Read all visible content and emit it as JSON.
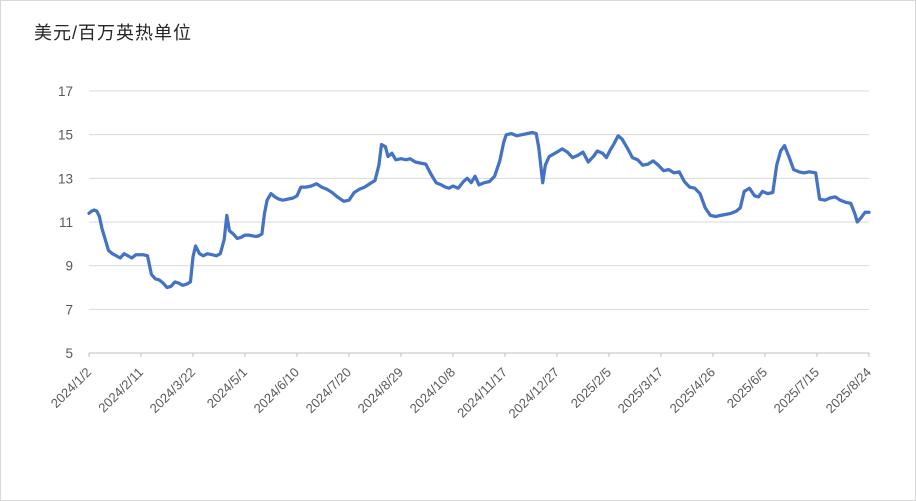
{
  "chart_data": {
    "type": "line",
    "title": "美元/百万英热单位",
    "ylabel": "",
    "xlabel": "",
    "ylim": [
      5,
      17
    ],
    "y_ticks": [
      5,
      7,
      9,
      11,
      13,
      15,
      17
    ],
    "x_tick_labels": [
      "2024/1/2",
      "2024/2/11",
      "2024/3/22",
      "2024/5/1",
      "2024/6/10",
      "2024/7/20",
      "2024/8/29",
      "2024/10/8",
      "2024/11/17",
      "2024/12/27",
      "2025/2/5",
      "2025/3/17",
      "2025/4/26",
      "2025/6/5",
      "2025/7/15",
      "2025/8/24"
    ],
    "x_tick_interval_days": 40,
    "grid": true,
    "legend": "none",
    "colors": {
      "line": "#4472C4",
      "gridline": "#D9D9D9",
      "axis": "#BFBFBF",
      "tick_label": "#595959",
      "title": "#262626",
      "background": "#FFFFFF",
      "border": "#D9D9D9"
    },
    "points": [
      [
        "2024/1/2",
        11.4
      ],
      [
        "2024/1/4",
        11.5
      ],
      [
        "2024/1/6",
        11.55
      ],
      [
        "2024/1/8",
        11.5
      ],
      [
        "2024/1/10",
        11.25
      ],
      [
        "2024/1/12",
        10.7
      ],
      [
        "2024/1/15",
        10.1
      ],
      [
        "2024/1/17",
        9.7
      ],
      [
        "2024/1/20",
        9.55
      ],
      [
        "2024/1/23",
        9.45
      ],
      [
        "2024/1/26",
        9.35
      ],
      [
        "2024/1/29",
        9.55
      ],
      [
        "2024/2/1",
        9.45
      ],
      [
        "2024/2/4",
        9.35
      ],
      [
        "2024/2/7",
        9.5
      ],
      [
        "2024/2/10",
        9.5
      ],
      [
        "2024/2/13",
        9.5
      ],
      [
        "2024/2/16",
        9.45
      ],
      [
        "2024/2/19",
        8.6
      ],
      [
        "2024/2/22",
        8.4
      ],
      [
        "2024/2/25",
        8.35
      ],
      [
        "2024/2/28",
        8.2
      ],
      [
        "2024/3/2",
        8.0
      ],
      [
        "2024/3/5",
        8.05
      ],
      [
        "2024/3/8",
        8.25
      ],
      [
        "2024/3/11",
        8.2
      ],
      [
        "2024/3/14",
        8.1
      ],
      [
        "2024/3/17",
        8.15
      ],
      [
        "2024/3/20",
        8.25
      ],
      [
        "2024/3/22",
        9.4
      ],
      [
        "2024/3/24",
        9.9
      ],
      [
        "2024/3/27",
        9.55
      ],
      [
        "2024/3/30",
        9.45
      ],
      [
        "2024/4/2",
        9.55
      ],
      [
        "2024/4/6",
        9.5
      ],
      [
        "2024/4/9",
        9.45
      ],
      [
        "2024/4/12",
        9.55
      ],
      [
        "2024/4/15",
        10.2
      ],
      [
        "2024/4/17",
        11.3
      ],
      [
        "2024/4/19",
        10.6
      ],
      [
        "2024/4/22",
        10.45
      ],
      [
        "2024/4/25",
        10.25
      ],
      [
        "2024/4/28",
        10.3
      ],
      [
        "2024/5/1",
        10.4
      ],
      [
        "2024/5/4",
        10.4
      ],
      [
        "2024/5/8",
        10.35
      ],
      [
        "2024/5/11",
        10.35
      ],
      [
        "2024/5/14",
        10.45
      ],
      [
        "2024/5/16",
        11.4
      ],
      [
        "2024/5/18",
        12.0
      ],
      [
        "2024/5/21",
        12.3
      ],
      [
        "2024/5/24",
        12.15
      ],
      [
        "2024/5/27",
        12.05
      ],
      [
        "2024/5/30",
        12.0
      ],
      [
        "2024/6/3",
        12.05
      ],
      [
        "2024/6/7",
        12.1
      ],
      [
        "2024/6/10",
        12.2
      ],
      [
        "2024/6/13",
        12.6
      ],
      [
        "2024/6/17",
        12.6
      ],
      [
        "2024/6/21",
        12.65
      ],
      [
        "2024/6/25",
        12.75
      ],
      [
        "2024/6/29",
        12.6
      ],
      [
        "2024/7/3",
        12.5
      ],
      [
        "2024/7/7",
        12.35
      ],
      [
        "2024/7/11",
        12.15
      ],
      [
        "2024/7/16",
        11.95
      ],
      [
        "2024/7/20",
        12.0
      ],
      [
        "2024/7/24",
        12.35
      ],
      [
        "2024/7/28",
        12.5
      ],
      [
        "2024/8/1",
        12.6
      ],
      [
        "2024/8/5",
        12.75
      ],
      [
        "2024/8/9",
        12.9
      ],
      [
        "2024/8/12",
        13.6
      ],
      [
        "2024/8/14",
        14.55
      ],
      [
        "2024/8/17",
        14.45
      ],
      [
        "2024/8/19",
        14.0
      ],
      [
        "2024/8/22",
        14.15
      ],
      [
        "2024/8/25",
        13.85
      ],
      [
        "2024/8/29",
        13.9
      ],
      [
        "2024/9/2",
        13.85
      ],
      [
        "2024/9/5",
        13.9
      ],
      [
        "2024/9/9",
        13.75
      ],
      [
        "2024/9/13",
        13.7
      ],
      [
        "2024/9/17",
        13.65
      ],
      [
        "2024/9/21",
        13.2
      ],
      [
        "2024/9/25",
        12.8
      ],
      [
        "2024/9/29",
        12.7
      ],
      [
        "2024/10/2",
        12.6
      ],
      [
        "2024/10/5",
        12.55
      ],
      [
        "2024/10/8",
        12.65
      ],
      [
        "2024/10/12",
        12.55
      ],
      [
        "2024/10/16",
        12.85
      ],
      [
        "2024/10/19",
        13.0
      ],
      [
        "2024/10/22",
        12.8
      ],
      [
        "2024/10/25",
        13.1
      ],
      [
        "2024/10/28",
        12.7
      ],
      [
        "2024/11/1",
        12.8
      ],
      [
        "2024/11/5",
        12.85
      ],
      [
        "2024/11/9",
        13.1
      ],
      [
        "2024/11/13",
        13.8
      ],
      [
        "2024/11/16",
        14.65
      ],
      [
        "2024/11/18",
        15.0
      ],
      [
        "2024/11/22",
        15.05
      ],
      [
        "2024/11/26",
        14.95
      ],
      [
        "2024/11/30",
        15.0
      ],
      [
        "2024/12/4",
        15.05
      ],
      [
        "2024/12/8",
        15.1
      ],
      [
        "2024/12/11",
        15.05
      ],
      [
        "2024/12/13",
        14.4
      ],
      [
        "2024/12/16",
        12.8
      ],
      [
        "2024/12/18",
        13.6
      ],
      [
        "2024/12/21",
        14.0
      ],
      [
        "2024/12/24",
        14.1
      ],
      [
        "2024/12/27",
        14.2
      ],
      [
        "2024/12/31",
        14.35
      ],
      [
        "2025/1/4",
        14.2
      ],
      [
        "2025/1/8",
        13.95
      ],
      [
        "2025/1/12",
        14.05
      ],
      [
        "2025/1/16",
        14.2
      ],
      [
        "2025/1/20",
        13.75
      ],
      [
        "2025/1/24",
        14.0
      ],
      [
        "2025/1/27",
        14.25
      ],
      [
        "2025/1/31",
        14.15
      ],
      [
        "2025/2/3",
        13.95
      ],
      [
        "2025/2/6",
        14.3
      ],
      [
        "2025/2/9",
        14.6
      ],
      [
        "2025/2/12",
        14.95
      ],
      [
        "2025/2/15",
        14.8
      ],
      [
        "2025/2/19",
        14.4
      ],
      [
        "2025/2/23",
        13.95
      ],
      [
        "2025/2/27",
        13.85
      ],
      [
        "2025/3/3",
        13.6
      ],
      [
        "2025/3/7",
        13.65
      ],
      [
        "2025/3/11",
        13.8
      ],
      [
        "2025/3/15",
        13.6
      ],
      [
        "2025/3/19",
        13.35
      ],
      [
        "2025/3/23",
        13.4
      ],
      [
        "2025/3/27",
        13.25
      ],
      [
        "2025/3/31",
        13.3
      ],
      [
        "2025/4/4",
        12.85
      ],
      [
        "2025/4/8",
        12.6
      ],
      [
        "2025/4/12",
        12.55
      ],
      [
        "2025/4/16",
        12.3
      ],
      [
        "2025/4/20",
        11.65
      ],
      [
        "2025/4/24",
        11.3
      ],
      [
        "2025/4/28",
        11.25
      ],
      [
        "2025/5/2",
        11.3
      ],
      [
        "2025/5/6",
        11.35
      ],
      [
        "2025/5/10",
        11.4
      ],
      [
        "2025/5/14",
        11.5
      ],
      [
        "2025/5/17",
        11.65
      ],
      [
        "2025/5/20",
        12.4
      ],
      [
        "2025/5/24",
        12.55
      ],
      [
        "2025/5/28",
        12.2
      ],
      [
        "2025/5/31",
        12.15
      ],
      [
        "2025/6/3",
        12.4
      ],
      [
        "2025/6/7",
        12.3
      ],
      [
        "2025/6/11",
        12.35
      ],
      [
        "2025/6/14",
        13.6
      ],
      [
        "2025/6/17",
        14.25
      ],
      [
        "2025/6/20",
        14.5
      ],
      [
        "2025/6/24",
        13.9
      ],
      [
        "2025/6/27",
        13.4
      ],
      [
        "2025/7/1",
        13.3
      ],
      [
        "2025/7/5",
        13.25
      ],
      [
        "2025/7/9",
        13.3
      ],
      [
        "2025/7/14",
        13.25
      ],
      [
        "2025/7/17",
        12.05
      ],
      [
        "2025/7/21",
        12.0
      ],
      [
        "2025/7/25",
        12.1
      ],
      [
        "2025/7/29",
        12.15
      ],
      [
        "2025/8/2",
        12.0
      ],
      [
        "2025/8/6",
        11.9
      ],
      [
        "2025/8/10",
        11.85
      ],
      [
        "2025/8/13",
        11.4
      ],
      [
        "2025/8/15",
        11.0
      ],
      [
        "2025/8/18",
        11.2
      ],
      [
        "2025/8/21",
        11.45
      ],
      [
        "2025/8/24",
        11.45
      ]
    ]
  }
}
